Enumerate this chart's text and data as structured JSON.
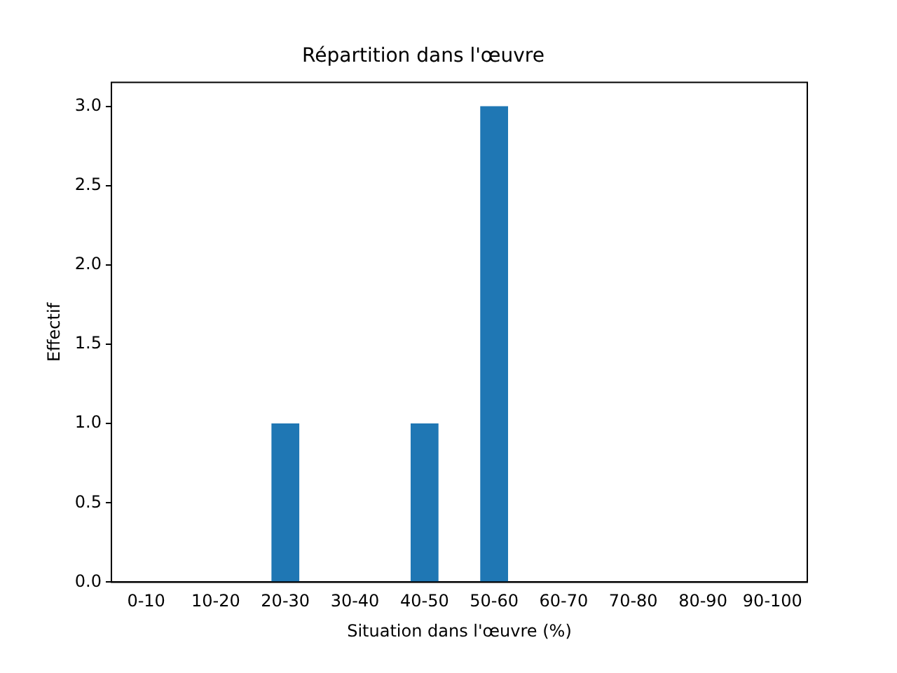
{
  "chart_data": {
    "type": "bar",
    "title": "Répartition dans l'œuvre",
    "xlabel": "Situation dans l'œuvre (%)",
    "ylabel": "Effectif",
    "categories": [
      "0-10",
      "10-20",
      "20-30",
      "30-40",
      "40-50",
      "50-60",
      "60-70",
      "70-80",
      "80-90",
      "90-100"
    ],
    "values": [
      0,
      0,
      1,
      0,
      1,
      3,
      0,
      0,
      0,
      0
    ],
    "color": "#1f77b4",
    "ylim": [
      0,
      3.15
    ],
    "yticks": [
      {
        "value": 0,
        "label": "0.0"
      },
      {
        "value": 0.5,
        "label": "0.5"
      },
      {
        "value": 1,
        "label": "1.0"
      },
      {
        "value": 1.5,
        "label": "1.5"
      },
      {
        "value": 2,
        "label": "2.0"
      },
      {
        "value": 2.5,
        "label": "2.5"
      },
      {
        "value": 3,
        "label": "3.0"
      }
    ],
    "grid": false,
    "legend": false
  }
}
